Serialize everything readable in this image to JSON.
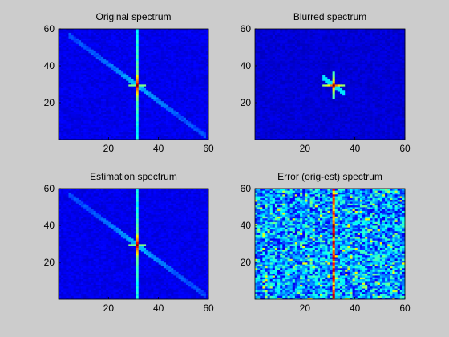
{
  "window": {
    "background": "#cccccc"
  },
  "colormap": "jet",
  "chart_data": [
    {
      "type": "heatmap",
      "title": "Original spectrum",
      "xlabel": "",
      "ylabel": "",
      "xlim": [
        0,
        60
      ],
      "ylim": [
        0,
        60
      ],
      "xticks": [
        20,
        40,
        60
      ],
      "yticks": [
        20,
        40,
        60
      ],
      "grid": false,
      "pattern": "central vertical streak at x≈32 plus diagonal streak from upper-left to lower-right",
      "peak_intensity": 1.0,
      "background_intensity": 0.08
    },
    {
      "type": "heatmap",
      "title": "Blurred spectrum",
      "xlabel": "",
      "ylabel": "",
      "xlim": [
        0,
        60
      ],
      "ylim": [
        0,
        60
      ],
      "xticks": [
        20,
        40,
        60
      ],
      "yticks": [
        20,
        40,
        60
      ],
      "grid": false,
      "pattern": "compact bright cross at center (x≈32, y≈30)",
      "peak_intensity": 1.0,
      "background_intensity": 0.06
    },
    {
      "type": "heatmap",
      "title": "Estimation spectrum",
      "xlabel": "",
      "ylabel": "",
      "xlim": [
        0,
        60
      ],
      "ylim": [
        0,
        60
      ],
      "xticks": [
        20,
        40,
        60
      ],
      "yticks": [
        20,
        40,
        60
      ],
      "grid": false,
      "pattern": "central vertical streak at x≈32 plus faint diagonal streak",
      "peak_intensity": 1.0,
      "background_intensity": 0.08
    },
    {
      "type": "heatmap",
      "title": "Error (orig-est) spectrum",
      "xlabel": "",
      "ylabel": "",
      "xlim": [
        0,
        60
      ],
      "ylim": [
        0,
        60
      ],
      "xticks": [
        20,
        40,
        60
      ],
      "yticks": [
        20,
        40,
        60
      ],
      "grid": false,
      "pattern": "noisy field with strong vertical red line at x≈32",
      "peak_intensity": 1.0,
      "background_intensity": 0.25
    }
  ]
}
